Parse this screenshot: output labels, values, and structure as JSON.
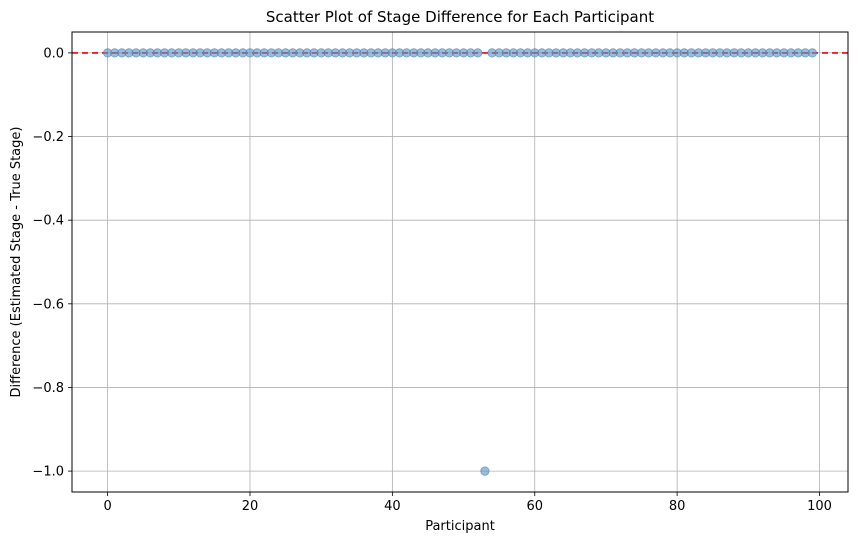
{
  "chart_data": {
    "type": "scatter",
    "title": "Scatter Plot of Stage Difference for Each Participant",
    "xlabel": "Participant",
    "ylabel": "Difference (Estimated Stage - True Stage)",
    "xlim": [
      -5,
      104
    ],
    "ylim": [
      -1.05,
      0.05
    ],
    "xticks": [
      0,
      20,
      40,
      60,
      80,
      100
    ],
    "yticks": [
      0.0,
      -0.2,
      -0.4,
      -0.6,
      -0.8,
      -1.0
    ],
    "ytick_labels": [
      "0.0",
      "−0.2",
      "−0.4",
      "−0.6",
      "−0.8",
      "−1.0"
    ],
    "grid": true,
    "reference_line": {
      "y": 0,
      "style": "dashed",
      "color": "#e8000b"
    },
    "marker_color": "#5b95c5",
    "marker_edge_color": "#4a82b4",
    "series": [
      {
        "name": "Difference",
        "x": [
          0,
          1,
          2,
          3,
          4,
          5,
          6,
          7,
          8,
          9,
          10,
          11,
          12,
          13,
          14,
          15,
          16,
          17,
          18,
          19,
          20,
          21,
          22,
          23,
          24,
          25,
          26,
          27,
          28,
          29,
          30,
          31,
          32,
          33,
          34,
          35,
          36,
          37,
          38,
          39,
          40,
          41,
          42,
          43,
          44,
          45,
          46,
          47,
          48,
          49,
          50,
          51,
          52,
          53,
          54,
          55,
          56,
          57,
          58,
          59,
          60,
          61,
          62,
          63,
          64,
          65,
          66,
          67,
          68,
          69,
          70,
          71,
          72,
          73,
          74,
          75,
          76,
          77,
          78,
          79,
          80,
          81,
          82,
          83,
          84,
          85,
          86,
          87,
          88,
          89,
          90,
          91,
          92,
          93,
          94,
          95,
          96,
          97,
          98,
          99
        ],
        "y": [
          0,
          0,
          0,
          0,
          0,
          0,
          0,
          0,
          0,
          0,
          0,
          0,
          0,
          0,
          0,
          0,
          0,
          0,
          0,
          0,
          0,
          0,
          0,
          0,
          0,
          0,
          0,
          0,
          0,
          0,
          0,
          0,
          0,
          0,
          0,
          0,
          0,
          0,
          0,
          0,
          0,
          0,
          0,
          0,
          0,
          0,
          0,
          0,
          0,
          0,
          0,
          0,
          0,
          -1,
          0,
          0,
          0,
          0,
          0,
          0,
          0,
          0,
          0,
          0,
          0,
          0,
          0,
          0,
          0,
          0,
          0,
          0,
          0,
          0,
          0,
          0,
          0,
          0,
          0,
          0,
          0,
          0,
          0,
          0,
          0,
          0,
          0,
          0,
          0,
          0,
          0,
          0,
          0,
          0,
          0,
          0,
          0,
          0,
          0,
          0
        ]
      }
    ]
  }
}
